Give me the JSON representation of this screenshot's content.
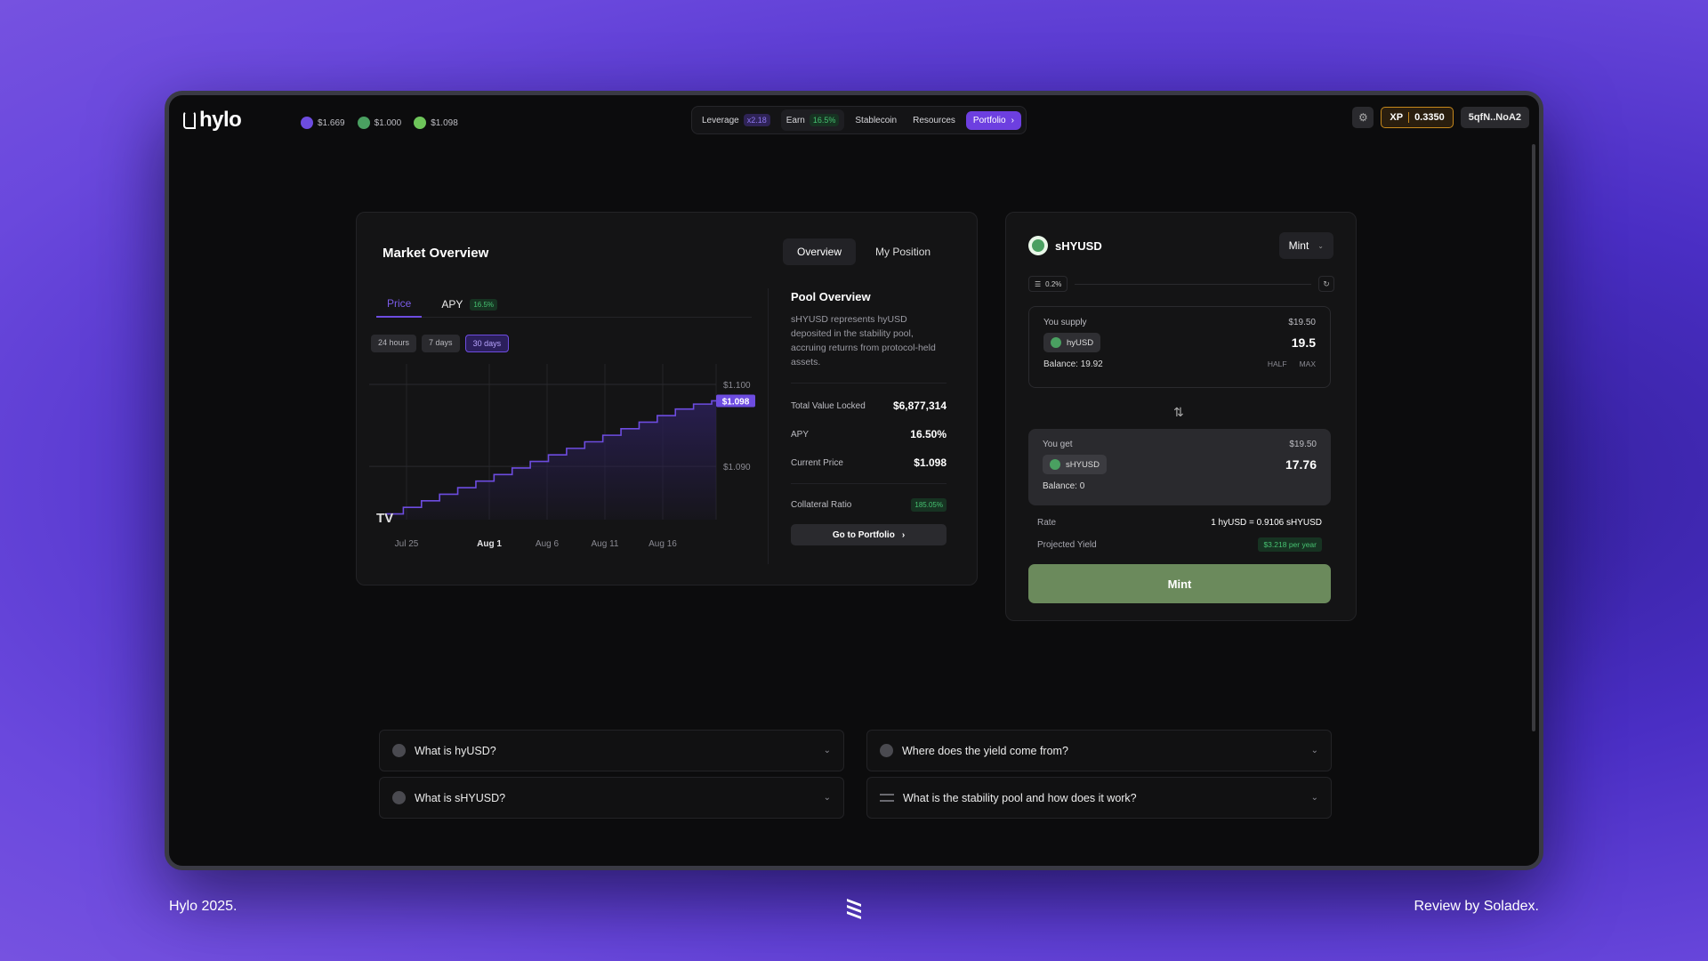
{
  "header": {
    "logo": "hylo",
    "tickers": [
      {
        "icon": "hylo-coin-icon",
        "value": "$1.669",
        "color": "#6d4ce0"
      },
      {
        "icon": "hyusd-coin-icon",
        "value": "$1.000",
        "color": "#4aa061"
      },
      {
        "icon": "shyusd-coin-icon",
        "value": "$1.098",
        "color": "#6ec55a"
      }
    ],
    "nav": {
      "leverage": "Leverage",
      "leverage_badge": "x2.18",
      "earn": "Earn",
      "earn_badge": "16.5%",
      "stablecoin": "Stablecoin",
      "resources": "Resources",
      "portfolio": "Portfolio"
    },
    "xp_label": "XP",
    "xp_value": "0.3350",
    "wallet": "5qfN..NoA2"
  },
  "market": {
    "title": "Market Overview",
    "tabs": [
      "Overview",
      "My Position"
    ],
    "sub_tabs": {
      "price": "Price",
      "apy": "APY",
      "apy_badge": "16.5%"
    },
    "ranges": [
      "24 hours",
      "7 days",
      "30 days"
    ],
    "watermark": "TV"
  },
  "chart_data": {
    "type": "line",
    "step": true,
    "x_ticks": [
      "Jul 25",
      "Aug 1",
      "Aug 6",
      "Aug 11",
      "Aug 16"
    ],
    "y_ticks": [
      "$1.100",
      "$1.090"
    ],
    "current_label": "$1.098",
    "ylim": [
      1.0835,
      1.1025
    ],
    "values": [
      1.0842,
      1.085,
      1.0858,
      1.0866,
      1.0874,
      1.0882,
      1.089,
      1.0898,
      1.0906,
      1.0914,
      1.0922,
      1.093,
      1.0938,
      1.0946,
      1.0954,
      1.0962,
      1.097,
      1.0976,
      1.098
    ],
    "colors": {
      "line": "#6d4ce0",
      "fill": "#2a1f55"
    }
  },
  "pool": {
    "title": "Pool Overview",
    "description": "sHYUSD represents hyUSD deposited in the stability pool, accruing returns from protocol-held assets.",
    "tvl_label": "Total Value Locked",
    "tvl": "$6,877,314",
    "apy_label": "APY",
    "apy": "16.50%",
    "price_label": "Current Price",
    "price": "$1.098",
    "cr_label": "Collateral Ratio",
    "cr": "185.05%",
    "goto": "Go to Portfolio"
  },
  "mint": {
    "token": "sHYUSD",
    "mode": "Mint",
    "slippage": "0.2%",
    "supply": {
      "label": "You supply",
      "usd": "$19.50",
      "token": "hyUSD",
      "amount": "19.5",
      "balance": "Balance: 19.92",
      "half": "HALF",
      "max": "MAX"
    },
    "get": {
      "label": "You get",
      "usd": "$19.50",
      "token": "sHYUSD",
      "amount": "17.76",
      "balance": "Balance: 0"
    },
    "rate_label": "Rate",
    "rate": "1 hyUSD = 0.9106 sHYUSD",
    "yield_label": "Projected Yield",
    "yield": "$3.218 per year",
    "button": "Mint"
  },
  "faq": [
    "What is hyUSD?",
    "Where does the yield come from?",
    "What is sHYUSD?",
    "What is the stability pool and how does it work?"
  ],
  "footer": {
    "left": "Hylo 2025.",
    "right": "Review by Soladex."
  }
}
